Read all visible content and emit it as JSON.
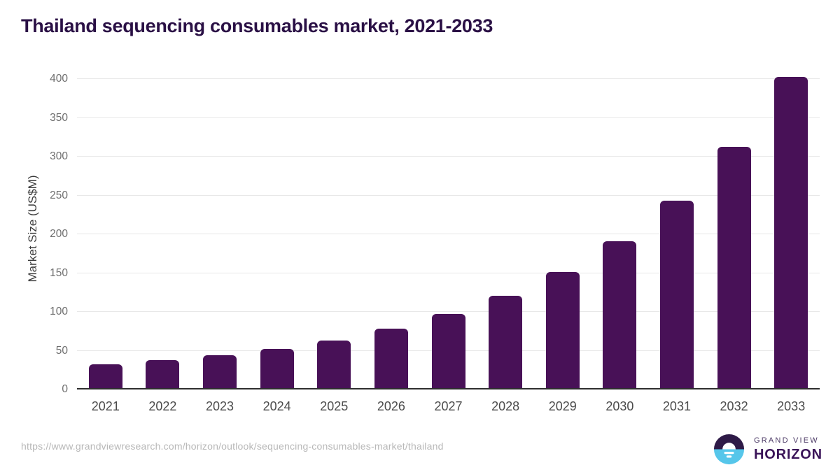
{
  "chart_data": {
    "type": "bar",
    "title": "Thailand sequencing consumables market, 2021-2033",
    "categories": [
      "2021",
      "2022",
      "2023",
      "2024",
      "2025",
      "2026",
      "2027",
      "2028",
      "2029",
      "2030",
      "2031",
      "2032",
      "2033"
    ],
    "values": [
      32,
      38,
      44,
      52,
      63,
      78,
      97,
      121,
      151,
      191,
      243,
      313,
      403
    ],
    "xlabel": "",
    "ylabel": "Market Size (US$M)",
    "ylim": [
      0,
      400
    ],
    "yticks": [
      0,
      50,
      100,
      150,
      200,
      250,
      300,
      350,
      400
    ],
    "grid": true,
    "legend": false,
    "bar_color": "#481157",
    "title_color": "#2a1045",
    "gridline_color": "#e8e8e8",
    "axis_line_color": "#2e2e2e"
  },
  "footer": {
    "source_url": "https://www.grandviewresearch.com/horizon/outlook/sequencing-consumables-market/thailand",
    "logo": {
      "line1": "GRAND VIEW",
      "line2": "HORIZON",
      "icon_dark_color": "#2e1a47",
      "icon_blue_color": "#56c6ea"
    }
  }
}
